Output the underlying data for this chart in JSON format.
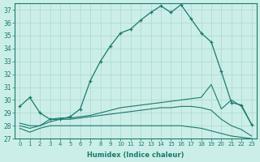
{
  "xlabel": "Humidex (Indice chaleur)",
  "x": [
    0,
    1,
    2,
    3,
    4,
    5,
    6,
    7,
    8,
    9,
    10,
    11,
    12,
    13,
    14,
    15,
    16,
    17,
    18,
    19,
    20,
    21,
    22,
    23
  ],
  "line1": [
    29.5,
    30.2,
    29.0,
    28.5,
    28.5,
    28.7,
    29.3,
    31.5,
    33.0,
    34.2,
    35.2,
    35.5,
    36.2,
    36.8,
    37.3,
    36.8,
    37.4,
    36.3,
    35.2,
    34.5,
    32.2,
    29.8,
    29.6,
    28.1
  ],
  "line2": [
    28.2,
    28.0,
    28.0,
    28.5,
    28.6,
    28.6,
    28.7,
    28.8,
    29.0,
    29.2,
    29.4,
    29.5,
    29.6,
    29.7,
    29.8,
    29.9,
    30.0,
    30.1,
    30.2,
    31.2,
    29.3,
    30.0,
    29.5,
    28.1
  ],
  "line3": [
    28.0,
    27.8,
    28.0,
    28.3,
    28.5,
    28.5,
    28.6,
    28.7,
    28.8,
    28.9,
    29.0,
    29.1,
    29.2,
    29.3,
    29.4,
    29.4,
    29.5,
    29.5,
    29.4,
    29.2,
    28.5,
    28.0,
    27.7,
    27.2
  ],
  "line4": [
    27.8,
    27.5,
    27.8,
    28.0,
    28.0,
    28.0,
    28.0,
    28.0,
    28.0,
    28.0,
    28.0,
    28.0,
    28.0,
    28.0,
    28.0,
    28.0,
    28.0,
    27.9,
    27.8,
    27.6,
    27.4,
    27.2,
    27.1,
    27.0
  ],
  "line_color": "#1a7a6e",
  "bg_color": "#cceee8",
  "grid_color": "#aad8d0",
  "ylim": [
    27,
    37.5
  ],
  "yticks": [
    27,
    28,
    29,
    30,
    31,
    32,
    33,
    34,
    35,
    36,
    37
  ],
  "xlim": [
    -0.5,
    23.5
  ]
}
